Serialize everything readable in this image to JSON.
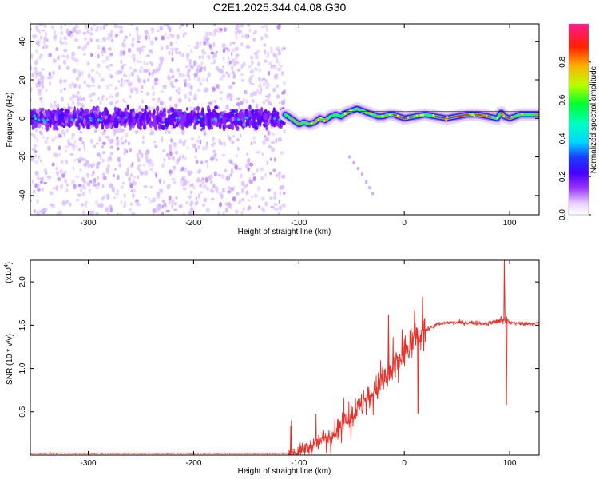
{
  "figure_title": "C2E1.2025.344.04.08.G30",
  "colors": {
    "scatter_purple": "#7a1cff",
    "snr_red": "#e8312b",
    "axis": "#000000",
    "colormap": [
      "#ffffff",
      "#d9b8ff",
      "#8f2bff",
      "#5a00ff",
      "#2a22ff",
      "#00e5ff",
      "#00ff44",
      "#ccff00",
      "#ff9900",
      "#ff1a00",
      "#ff1b8d"
    ]
  },
  "chart_data": [
    {
      "type": "heatmap",
      "title": "C2E1.2025.344.04.08.G30",
      "xlabel": "Height of straight line (km)",
      "ylabel": "Frequency (Hz)",
      "xlim": [
        -355,
        128
      ],
      "ylim": [
        -50,
        49
      ],
      "x_ticks": [
        -300,
        -200,
        -100,
        0,
        100
      ],
      "x_tick_labels": [
        "-300",
        "-200",
        "-100",
        "0",
        "100"
      ],
      "y_ticks": [
        -40,
        -20,
        0,
        20,
        40
      ],
      "y_tick_labels": [
        "-40",
        "-20",
        "0",
        "20",
        "40"
      ],
      "grid": false,
      "noise_region_x": [
        -355,
        -113
      ],
      "noise_band_hz": [
        -8,
        8
      ],
      "ridge": {
        "x": [
          -113,
          -105,
          -100,
          -95,
          -90,
          -85,
          -80,
          -75,
          -70,
          -65,
          -60,
          -55,
          -50,
          -45,
          -40,
          -35,
          -30,
          -25,
          -20,
          -15,
          -10,
          -5,
          0,
          10,
          20,
          30,
          40,
          50,
          60,
          70,
          80,
          88,
          92,
          95,
          100,
          110,
          128
        ],
        "y": [
          2,
          -1,
          -3,
          -2,
          -3,
          -2,
          0,
          -1,
          1,
          2,
          1,
          3,
          4,
          5,
          4,
          3,
          2,
          1,
          1,
          2,
          2,
          1,
          0,
          1,
          2,
          1,
          0,
          1,
          2,
          2,
          1,
          0,
          3,
          1,
          0,
          2,
          2
        ]
      },
      "faint_tail": {
        "x": [
          -52,
          -48,
          -44,
          -40,
          -36,
          -33,
          -30
        ],
        "y": [
          -20,
          -23,
          -26,
          -29,
          -33,
          -36,
          -39
        ]
      },
      "colorbar": {
        "label": "Normalized spectral amplitude",
        "range": [
          0,
          1
        ],
        "ticks": [
          0.0,
          0.2,
          0.4,
          0.6,
          0.8
        ],
        "tick_labels": [
          "0.0",
          "0.2",
          "0.4",
          "0.6",
          "0.8"
        ]
      }
    },
    {
      "type": "line",
      "xlabel": "Height of straight line (km)",
      "ylabel": "SNR (10 * v/v)",
      "y_multiplier_label": "(x10",
      "y_multiplier_exp": "4",
      "xlim": [
        -355,
        128
      ],
      "ylim": [
        0,
        2.25
      ],
      "x_ticks": [
        -300,
        -200,
        -100,
        0,
        100
      ],
      "x_tick_labels": [
        "-300",
        "-200",
        "-100",
        "0",
        "100"
      ],
      "y_ticks": [
        0.5,
        1.0,
        1.5,
        2.0
      ],
      "y_tick_labels": [
        "0.5",
        "1.0",
        "1.5",
        "2.0"
      ],
      "grid": false,
      "series": [
        {
          "name": "SNR",
          "color": "#e8312b",
          "trend_x": [
            -355,
            -110,
            -100,
            -90,
            -80,
            -70,
            -60,
            -50,
            -40,
            -30,
            -20,
            -10,
            0,
            10,
            20,
            30,
            40,
            60,
            80,
            90,
            95,
            100,
            110,
            128
          ],
          "trend_y": [
            0.02,
            0.02,
            0.04,
            0.09,
            0.16,
            0.24,
            0.34,
            0.45,
            0.58,
            0.72,
            0.85,
            1.0,
            1.18,
            1.34,
            1.44,
            1.5,
            1.53,
            1.53,
            1.52,
            1.55,
            1.55,
            1.53,
            1.52,
            1.52
          ],
          "spikes": [
            {
              "x": 95,
              "y": 2.25
            },
            {
              "x": 97,
              "y": 0.58
            },
            {
              "x": 13,
              "y": 0.48
            },
            {
              "x": -15,
              "y": 1.62
            },
            {
              "x": -2,
              "y": 1.45
            }
          ]
        }
      ]
    }
  ]
}
